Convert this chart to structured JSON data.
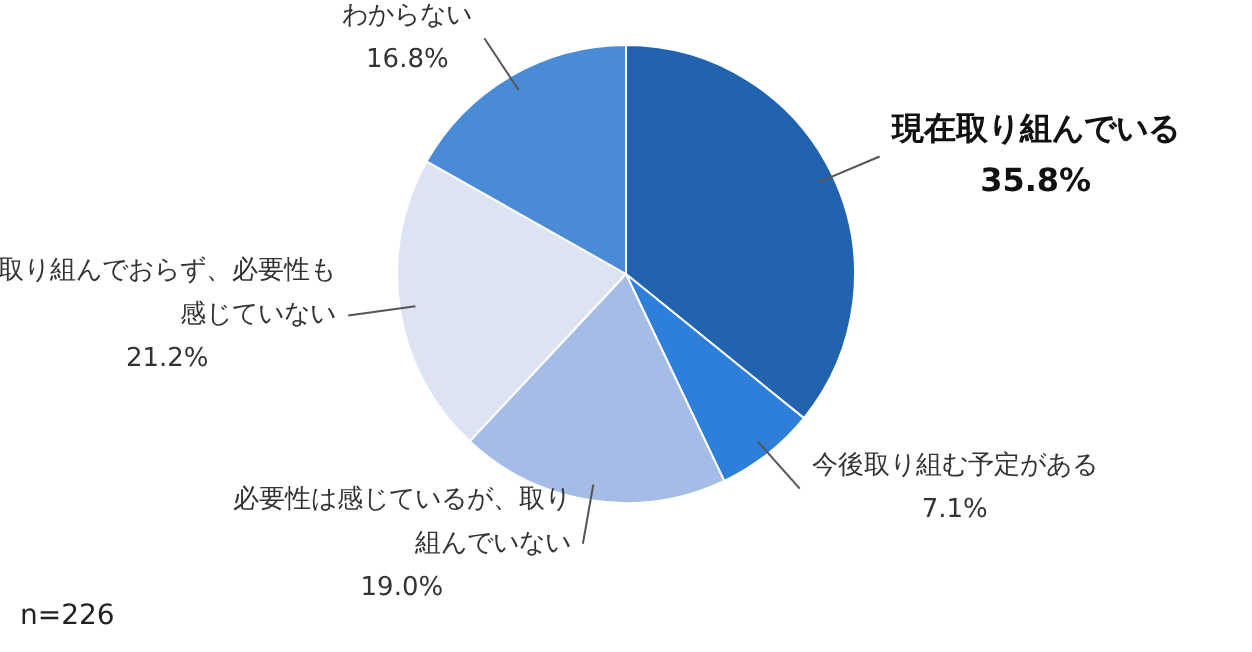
{
  "chart_data": {
    "type": "pie",
    "categories": [
      "現在取り組んでいる",
      "今後取り組む予定がある",
      "必要性は感じているが、取り組んでいない",
      "取り組んでおらず、必要性も感じていない",
      "わからない"
    ],
    "values": [
      35.8,
      7.1,
      19.0,
      21.2,
      16.8
    ],
    "value_labels": [
      "35.8%",
      "7.1%",
      "19.0%",
      "21.2%",
      "16.8%"
    ],
    "colors": [
      "#2163af",
      "#2d7fd9",
      "#a5bde6",
      "#dde3f3",
      "#4a8bd8"
    ],
    "annotations": [
      "n=226"
    ],
    "legend": false
  }
}
